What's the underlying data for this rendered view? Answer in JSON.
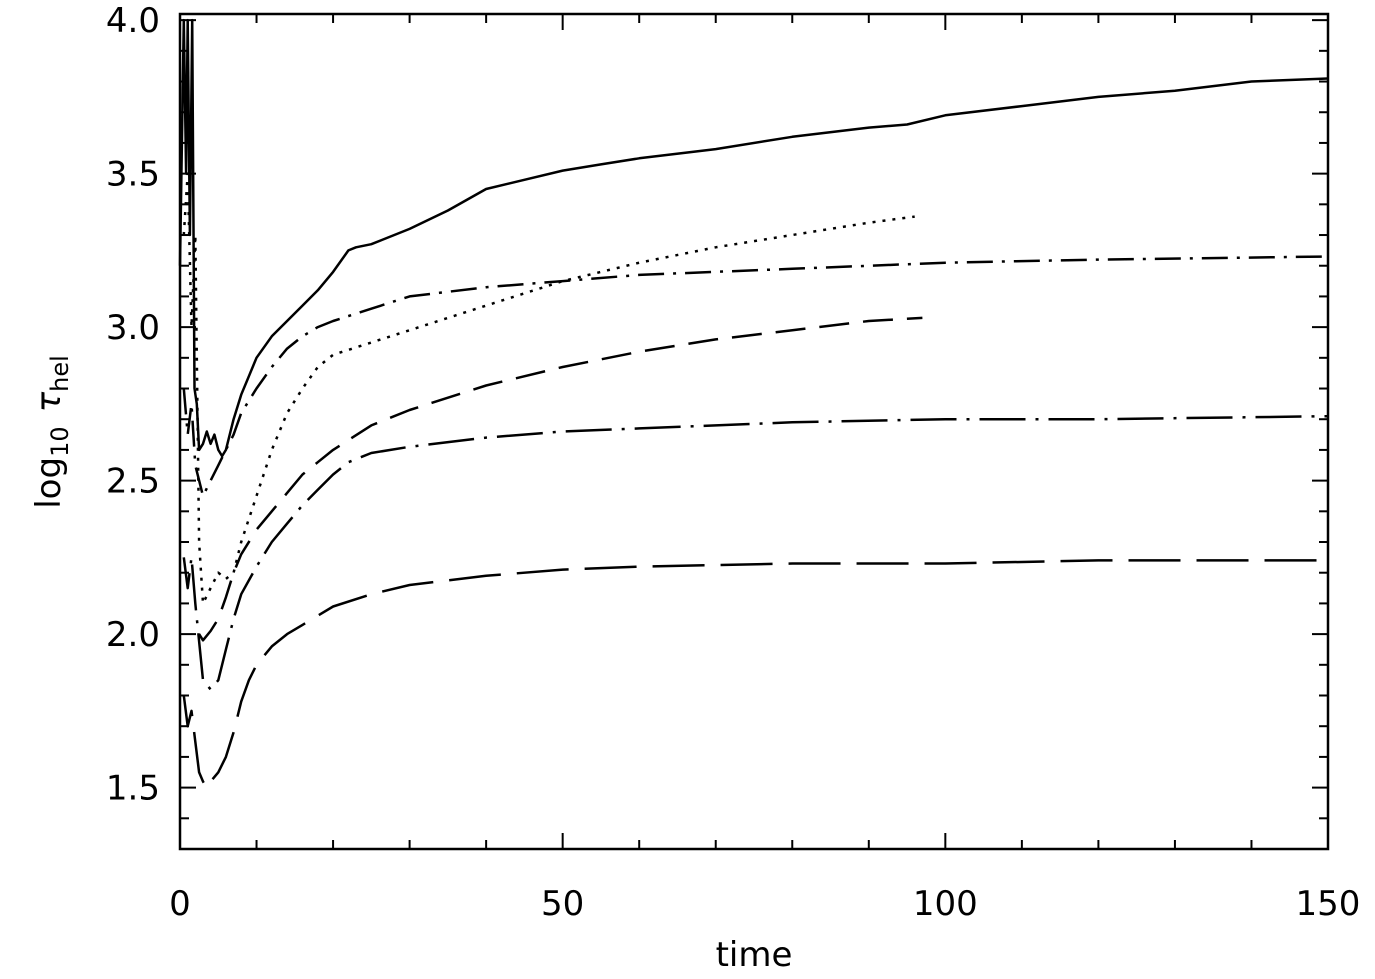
{
  "chart_data": {
    "type": "line",
    "xlabel": "time",
    "ylabel": "log10 τhel",
    "ylabel_parts": {
      "main": "log",
      "sub": "10",
      "symbol": "τ",
      "symbol_sub": "hel"
    },
    "xlim": [
      0,
      150
    ],
    "ylim": [
      1.3,
      4.02
    ],
    "xticks": [
      0,
      50,
      100,
      150
    ],
    "xtick_labels": [
      "0",
      "50",
      "100",
      "150"
    ],
    "yticks": [
      1.5,
      2.0,
      2.5,
      3.0,
      3.5,
      4.0
    ],
    "ytick_labels": [
      "1.5",
      "2.0",
      "2.5",
      "3.0",
      "3.5",
      "4.0"
    ],
    "x_minor_step": 10,
    "y_minor_step": 0.1,
    "grid": false,
    "series": [
      {
        "style": "solid",
        "x": [
          0,
          0.5,
          0.8,
          1.0,
          1.3,
          1.6,
          1.9,
          2.2,
          2.5,
          3.0,
          3.5,
          4.0,
          4.5,
          5.0,
          5.5,
          6.0,
          7.0,
          8.0,
          9.0,
          10,
          12,
          14,
          16,
          18,
          20,
          22,
          23,
          25,
          28,
          30,
          35,
          40,
          45,
          50,
          55,
          60,
          70,
          80,
          90,
          95,
          100,
          110,
          120,
          130,
          140,
          150
        ],
        "y": [
          3.2,
          4.0,
          3.5,
          4.0,
          3.3,
          4.0,
          2.8,
          2.75,
          2.6,
          2.62,
          2.66,
          2.62,
          2.65,
          2.6,
          2.58,
          2.6,
          2.7,
          2.78,
          2.84,
          2.9,
          2.97,
          3.02,
          3.07,
          3.12,
          3.18,
          3.25,
          3.26,
          3.27,
          3.3,
          3.32,
          3.38,
          3.45,
          3.48,
          3.51,
          3.53,
          3.55,
          3.58,
          3.62,
          3.65,
          3.66,
          3.69,
          3.72,
          3.75,
          3.77,
          3.8,
          3.81
        ]
      },
      {
        "style": "dotted",
        "x": [
          0.5,
          1.0,
          1.5,
          2.0,
          2.5,
          3.0,
          4.0,
          5.0,
          6.0,
          7.0,
          8.0,
          10,
          12,
          14,
          16,
          18,
          20,
          25,
          30,
          40,
          50,
          60,
          70,
          80,
          90,
          96
        ],
        "y": [
          3.3,
          3.5,
          3.0,
          3.3,
          2.3,
          2.1,
          2.15,
          2.2,
          2.18,
          2.2,
          2.3,
          2.45,
          2.6,
          2.72,
          2.8,
          2.87,
          2.91,
          2.95,
          2.99,
          3.07,
          3.15,
          3.21,
          3.26,
          3.3,
          3.34,
          3.36
        ]
      },
      {
        "style": "dash-dot",
        "x": [
          0.5,
          1.0,
          1.5,
          2.0,
          3.0,
          4.0,
          5.0,
          6.0,
          7.0,
          8.0,
          10,
          12,
          14,
          16,
          18,
          20,
          25,
          30,
          40,
          50,
          60,
          80,
          100,
          120,
          150
        ],
        "y": [
          2.8,
          2.65,
          2.75,
          2.55,
          2.45,
          2.5,
          2.55,
          2.6,
          2.65,
          2.72,
          2.8,
          2.87,
          2.93,
          2.97,
          3.0,
          3.02,
          3.06,
          3.1,
          3.13,
          3.15,
          3.17,
          3.19,
          3.21,
          3.22,
          3.23
        ]
      },
      {
        "style": "dashed",
        "x": [
          2.5,
          3.0,
          4.0,
          5.0,
          6.0,
          7.0,
          8.0,
          10,
          12,
          14,
          16,
          18,
          20,
          25,
          30,
          40,
          50,
          60,
          70,
          80,
          90,
          97
        ],
        "y": [
          2.0,
          1.98,
          2.01,
          2.05,
          2.12,
          2.2,
          2.26,
          2.34,
          2.4,
          2.46,
          2.52,
          2.56,
          2.6,
          2.68,
          2.73,
          2.81,
          2.87,
          2.92,
          2.96,
          2.99,
          3.02,
          3.03
        ]
      },
      {
        "style": "long-dash-dot",
        "x": [
          0.5,
          1.0,
          1.5,
          2.0,
          3.0,
          4.0,
          5.0,
          6.0,
          7.0,
          8.0,
          10,
          12,
          14,
          16,
          18,
          20,
          22,
          25,
          30,
          40,
          50,
          60,
          80,
          100,
          120,
          150
        ],
        "y": [
          2.25,
          2.15,
          2.25,
          2.1,
          1.85,
          1.82,
          1.85,
          1.95,
          2.05,
          2.13,
          2.22,
          2.3,
          2.36,
          2.42,
          2.47,
          2.52,
          2.56,
          2.59,
          2.61,
          2.64,
          2.66,
          2.67,
          2.69,
          2.7,
          2.7,
          2.71
        ]
      },
      {
        "style": "long-dash",
        "x": [
          0.5,
          1.0,
          1.5,
          2.0,
          2.5,
          3.0,
          3.5,
          4.0,
          5.0,
          6.0,
          7.0,
          8.0,
          9.0,
          10,
          12,
          14,
          16,
          18,
          20,
          25,
          30,
          40,
          50,
          60,
          80,
          100,
          120,
          150
        ],
        "y": [
          1.8,
          1.7,
          1.75,
          1.65,
          1.55,
          1.52,
          1.5,
          1.52,
          1.55,
          1.6,
          1.68,
          1.78,
          1.85,
          1.9,
          1.96,
          2.0,
          2.03,
          2.06,
          2.09,
          2.13,
          2.16,
          2.19,
          2.21,
          2.22,
          2.23,
          2.23,
          2.24,
          2.24
        ]
      }
    ]
  }
}
